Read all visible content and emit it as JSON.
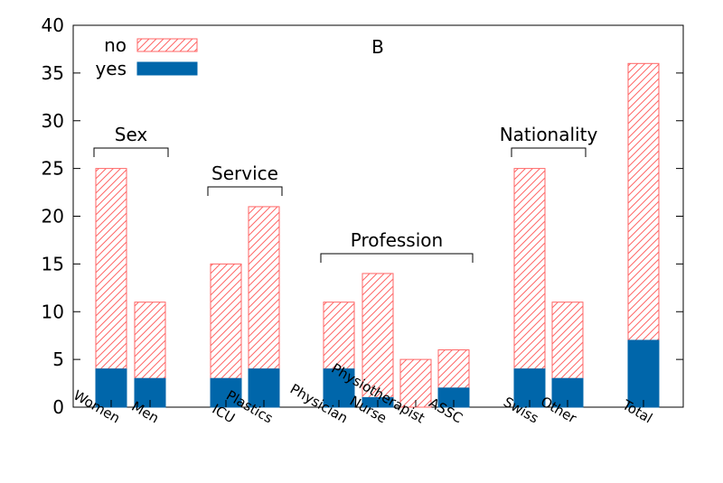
{
  "chart_data": {
    "type": "bar",
    "stacked": true,
    "title": "B",
    "xlabel": "",
    "ylabel": "",
    "ylim": [
      0,
      40
    ],
    "yticks": [
      0,
      5,
      10,
      15,
      20,
      25,
      30,
      35,
      40
    ],
    "legend_position": "top-left",
    "categories": [
      "Women",
      "Men",
      "ICU",
      "Plastics",
      "Physician",
      "Nurse",
      "Physiotherapist",
      "ASSC",
      "Swiss",
      "Other",
      "Total"
    ],
    "series": [
      {
        "name": "yes",
        "color": "#0066aa",
        "pattern": "solid",
        "values": [
          4,
          3,
          3,
          4,
          4,
          1,
          0,
          2,
          4,
          3,
          7
        ]
      },
      {
        "name": "no",
        "color": "#ff6666",
        "pattern": "hatched",
        "values": [
          21,
          8,
          12,
          17,
          7,
          13,
          5,
          4,
          21,
          8,
          29
        ]
      }
    ],
    "groups": [
      {
        "label": "Sex",
        "members": [
          "Women",
          "Men"
        ]
      },
      {
        "label": "Service",
        "members": [
          "ICU",
          "Plastics"
        ]
      },
      {
        "label": "Profession",
        "members": [
          "Physician",
          "Nurse",
          "Physiotherapist",
          "ASSC"
        ]
      },
      {
        "label": "Nationality",
        "members": [
          "Swiss",
          "Other"
        ]
      }
    ]
  }
}
